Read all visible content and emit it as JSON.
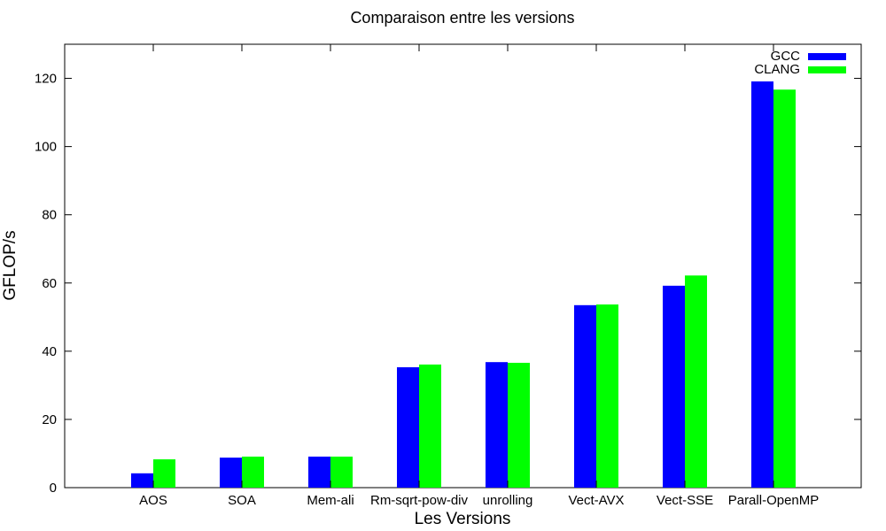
{
  "chart_data": {
    "type": "bar",
    "title": "Comparaison entre les versions",
    "xlabel": "Les Versions",
    "ylabel": "GFLOP/s",
    "ylim": [
      0,
      130
    ],
    "yticks": [
      0,
      20,
      40,
      60,
      80,
      100,
      120
    ],
    "grid": false,
    "legend_position": "top-right",
    "categories": [
      "AOS",
      "SOA",
      "Mem-ali",
      "Rm-sqrt-pow-div",
      "unrolling",
      "Vect-AVX",
      "Vect-SSE",
      "Parall-OpenMP"
    ],
    "series": [
      {
        "name": "GCC",
        "color": "#0000ff",
        "values": [
          4.2,
          8.8,
          9.1,
          35.3,
          36.8,
          53.5,
          59.2,
          119.1
        ]
      },
      {
        "name": "CLANG",
        "color": "#00ff00",
        "values": [
          8.3,
          9.1,
          9.1,
          36.1,
          36.6,
          53.7,
          62.2,
          116.7
        ]
      }
    ]
  }
}
